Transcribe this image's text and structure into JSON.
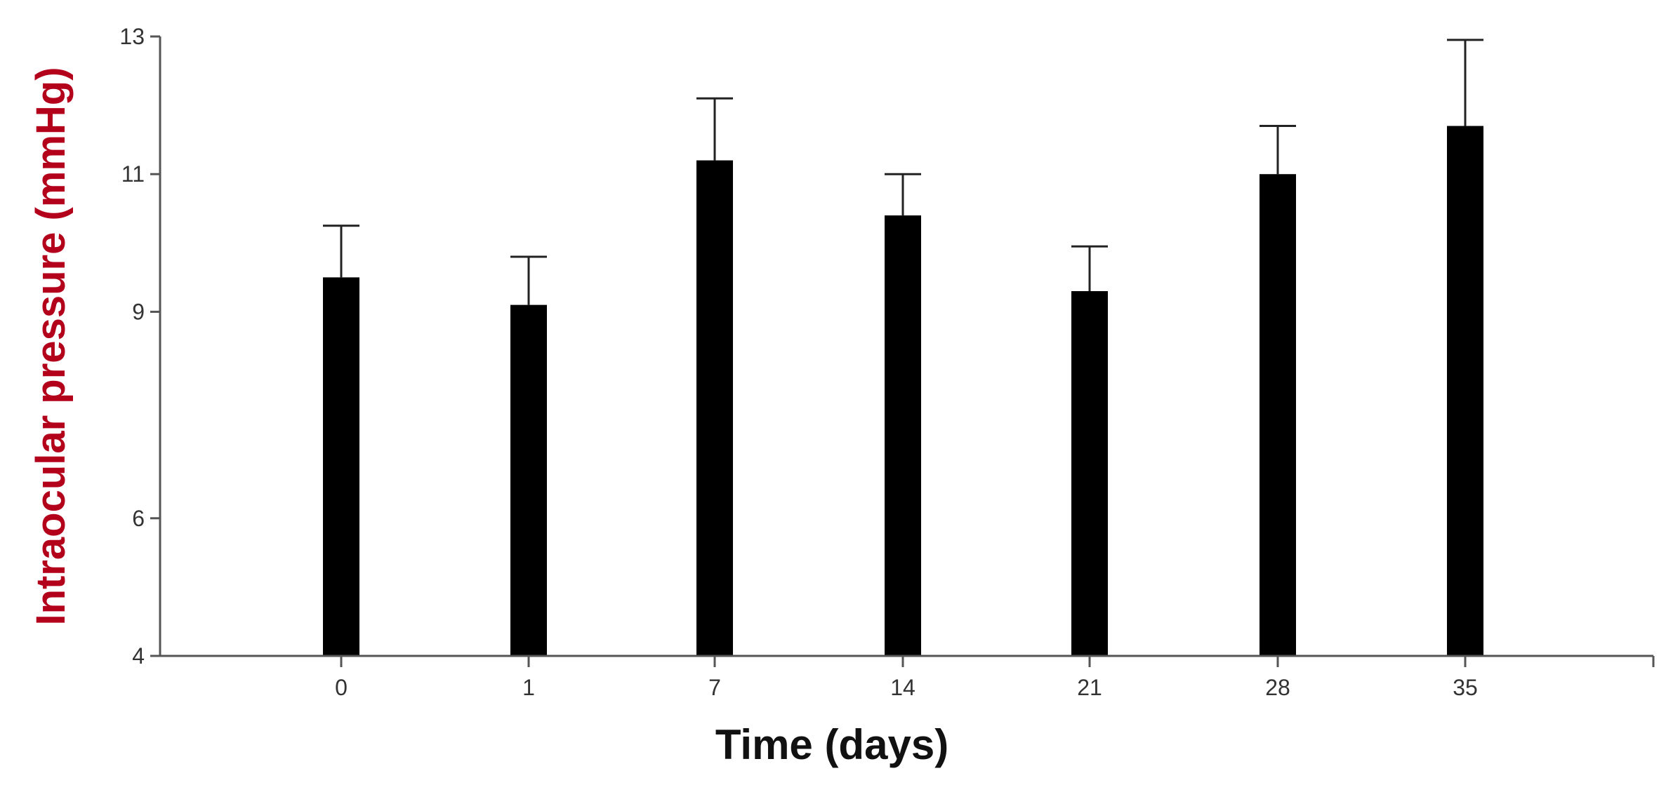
{
  "chart_data": {
    "type": "bar",
    "title": "",
    "xlabel": "Time (days)",
    "ylabel": "Intraocular pressure (mmHg)",
    "categories": [
      "0",
      "1",
      "7",
      "14",
      "21",
      "28",
      "35"
    ],
    "values": [
      9.5,
      9.1,
      11.2,
      10.4,
      9.3,
      11.0,
      11.7
    ],
    "error": [
      0.75,
      0.7,
      0.9,
      0.6,
      0.65,
      0.7,
      1.25
    ],
    "ylim": [
      4,
      13
    ],
    "yticks": [
      "4",
      "6",
      "9",
      "11",
      "13"
    ],
    "grid": false,
    "colors": {
      "bars": "#000000",
      "axes": "#555555",
      "ylabel": "#b3001b",
      "xlabel": "#111111"
    }
  }
}
